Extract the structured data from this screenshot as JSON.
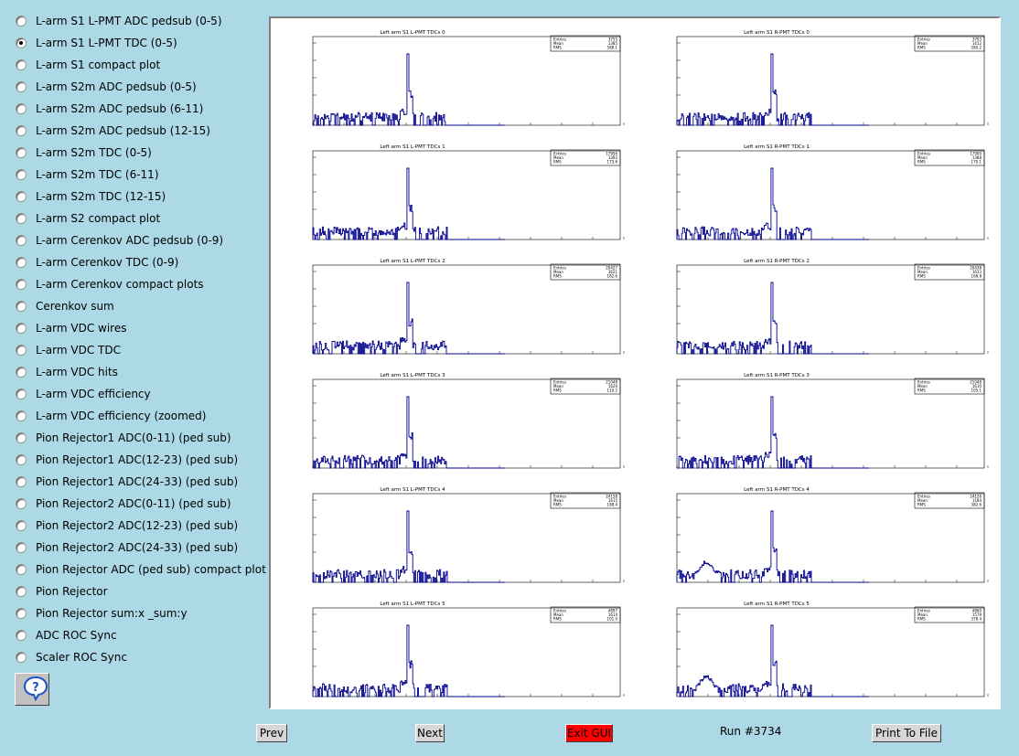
{
  "sidebar": {
    "selected_index": 1,
    "items": [
      "L-arm S1 L-PMT ADC pedsub (0-5)",
      "L-arm S1 L-PMT TDC (0-5)",
      "L-arm S1 compact plot",
      "L-arm S2m ADC pedsub (0-5)",
      "L-arm S2m ADC pedsub (6-11)",
      "L-arm S2m ADC pedsub (12-15)",
      "L-arm S2m TDC (0-5)",
      "L-arm S2m TDC (6-11)",
      "L-arm S2m TDC (12-15)",
      "L-arm S2 compact plot",
      "L-arm Cerenkov ADC pedsub (0-9)",
      "L-arm Cerenkov TDC (0-9)",
      "L-arm Cerenkov compact plots",
      "Cerenkov sum",
      "L-arm VDC wires",
      "L-arm VDC TDC",
      "L-arm VDC hits",
      "L-arm VDC efficiency",
      "L-arm VDC efficiency (zoomed)",
      "Pion Rejector1 ADC(0-11) (ped sub)",
      "Pion Rejector1 ADC(12-23) (ped sub)",
      "Pion Rejector1 ADC(24-33) (ped sub)",
      "Pion Rejector2 ADC(0-11) (ped sub)",
      "Pion Rejector2 ADC(12-23) (ped sub)",
      "Pion Rejector2 ADC(24-33) (ped sub)",
      "Pion Rejector ADC (ped sub) compact plot",
      "Pion Rejector",
      "Pion Rejector sum:x _sum:y",
      "ADC ROC Sync",
      "Scaler ROC Sync"
    ],
    "help_icon": "question-mark-icon"
  },
  "colors": {
    "hist": "#00008b",
    "background": "#add8e6",
    "exit": "#ff0000"
  },
  "chart_data": [
    {
      "type": "bar",
      "title": "Left arm S1 L-PMT TDCs 0",
      "log_y": true,
      "stats": {
        "Entries": "3755",
        "Mean": "1385",
        "RMS": "588.1"
      },
      "shape": "flat",
      "seed": 11
    },
    {
      "type": "bar",
      "title": "Left arm S1 R-PMT TDCs 0",
      "log_y": true,
      "stats": {
        "Entries": "3703",
        "Mean": "1412",
        "RMS": "580.2"
      },
      "shape": "flat",
      "seed": 12
    },
    {
      "type": "bar",
      "title": "Left arm S1 L-PMT TDCs 1",
      "log_y": true,
      "stats": {
        "Entries": "17956",
        "Mean": "1393",
        "RMS": "173.6"
      },
      "shape": "flat",
      "seed": 13
    },
    {
      "type": "bar",
      "title": "Left arm S1 R-PMT TDCs 1",
      "log_y": true,
      "stats": {
        "Entries": "17900",
        "Mean": "1388",
        "RMS": "170.1"
      },
      "shape": "flat",
      "seed": 14
    },
    {
      "type": "bar",
      "title": "Left arm S1 L-PMT TDCs 2",
      "log_y": true,
      "stats": {
        "Entries": "20427",
        "Mean": "1621",
        "RMS": "182.6"
      },
      "shape": "flat",
      "seed": 15
    },
    {
      "type": "bar",
      "title": "Left arm S1 R-PMT TDCs 2",
      "log_y": true,
      "stats": {
        "Entries": "20438",
        "Mean": "1613",
        "RMS": "168.8"
      },
      "shape": "flat",
      "seed": 16
    },
    {
      "type": "bar",
      "title": "Left arm S1 L-PMT TDCs 3",
      "log_y": true,
      "stats": {
        "Entries": "21048",
        "Mean": "1620",
        "RMS": "110.2"
      },
      "shape": "flat",
      "seed": 17
    },
    {
      "type": "bar",
      "title": "Left arm S1 R-PMT TDCs 3",
      "log_y": true,
      "stats": {
        "Entries": "21048",
        "Mean": "1610",
        "RMS": "105.1"
      },
      "shape": "flat",
      "seed": 18
    },
    {
      "type": "bar",
      "title": "Left arm S1 L-PMT TDCs 4",
      "log_y": true,
      "stats": {
        "Entries": "24158",
        "Mean": "1615",
        "RMS": "188.4"
      },
      "shape": "flat",
      "seed": 19
    },
    {
      "type": "bar",
      "title": "Left arm S1 R-PMT TDCs 4",
      "log_y": true,
      "stats": {
        "Entries": "24126",
        "Mean": "1184",
        "RMS": "382.6"
      },
      "shape": "bump",
      "seed": 20
    },
    {
      "type": "bar",
      "title": "Left arm S1 L-PMT TDCs 5",
      "log_y": true,
      "stats": {
        "Entries": "4897",
        "Mean": "1614",
        "RMS": "101.0"
      },
      "shape": "flat",
      "seed": 21
    },
    {
      "type": "bar",
      "title": "Left arm S1 R-PMT TDCs 5",
      "log_y": true,
      "stats": {
        "Entries": "4860",
        "Mean": "1579",
        "RMS": "378.4"
      },
      "shape": "bump",
      "seed": 22
    }
  ],
  "stat_labels": [
    "Entries",
    "Mean",
    "RMS"
  ],
  "buttons": {
    "prev": "Prev",
    "next": "Next",
    "exit": "Exit GUI",
    "print": "Print To File"
  },
  "run_label": "Run #3734"
}
